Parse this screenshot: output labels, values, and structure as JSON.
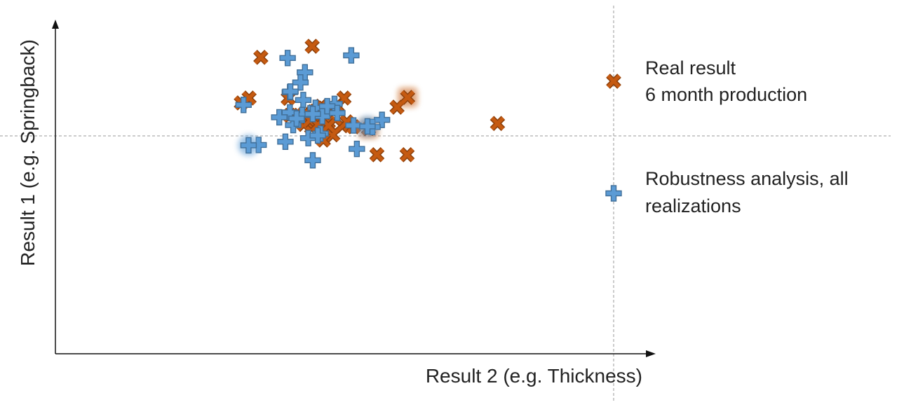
{
  "chart_data": {
    "type": "scatter",
    "xlabel": "Result 2 (e.g. Thickness)",
    "ylabel": "Result 1 (e.g. Springback)",
    "xlim": [
      0,
      1
    ],
    "ylim": [
      0,
      1
    ],
    "grid": false,
    "legend_position": "right",
    "reference_lines": {
      "horizontal_y": 0.72,
      "vertical_x": 1.0
    },
    "series": [
      {
        "name": "Real result\n6 month production",
        "legend_lines": [
          "Real result",
          "6 month production"
        ],
        "marker": "x",
        "color": "#C55A11",
        "points": [
          [
            0.46,
            0.944
          ],
          [
            0.368,
            0.91
          ],
          [
            0.517,
            0.785
          ],
          [
            0.612,
            0.757
          ],
          [
            0.446,
            0.737
          ],
          [
            0.333,
            0.77
          ],
          [
            0.514,
            0.7
          ],
          [
            0.476,
            0.76
          ],
          [
            0.475,
            0.714
          ],
          [
            0.489,
            0.71
          ],
          [
            0.458,
            0.731
          ],
          [
            0.459,
            0.694
          ],
          [
            0.497,
            0.672
          ],
          [
            0.48,
            0.656
          ],
          [
            0.42,
            0.732
          ],
          [
            0.534,
            0.697
          ],
          [
            0.63,
            0.611
          ],
          [
            0.505,
            0.76
          ],
          [
            0.792,
            0.707
          ],
          [
            0.445,
            0.704
          ],
          [
            0.347,
            0.785
          ],
          [
            0.576,
            0.611
          ],
          [
            0.417,
            0.784
          ],
          [
            0.437,
            0.732
          ],
          [
            0.462,
            0.743
          ],
          [
            0.475,
            0.744
          ],
          [
            0.456,
            0.717
          ],
          [
            0.47,
            0.703
          ],
          [
            0.466,
            0.745
          ],
          [
            0.481,
            0.754
          ],
          [
            0.522,
            0.712
          ],
          [
            0.489,
            0.7
          ]
        ],
        "highlighted": [
          [
            0.631,
            0.787
          ],
          [
            0.561,
            0.691
          ]
        ]
      },
      {
        "name": "Robustness analysis, all\nrealizations",
        "legend_lines": [
          "Robustness analysis, all",
          "realizations"
        ],
        "marker": "+",
        "color": "#5B9BD5",
        "points": [
          [
            0.416,
            0.908
          ],
          [
            0.447,
            0.864
          ],
          [
            0.53,
            0.916
          ],
          [
            0.337,
            0.764
          ],
          [
            0.439,
            0.833
          ],
          [
            0.42,
            0.803
          ],
          [
            0.444,
            0.779
          ],
          [
            0.421,
            0.805
          ],
          [
            0.466,
            0.755
          ],
          [
            0.5,
            0.767
          ],
          [
            0.442,
            0.733
          ],
          [
            0.42,
            0.741
          ],
          [
            0.426,
            0.702
          ],
          [
            0.475,
            0.676
          ],
          [
            0.478,
            0.729
          ],
          [
            0.487,
            0.76
          ],
          [
            0.534,
            0.701
          ],
          [
            0.461,
            0.736
          ],
          [
            0.505,
            0.739
          ],
          [
            0.412,
            0.651
          ],
          [
            0.453,
            0.662
          ],
          [
            0.54,
            0.629
          ],
          [
            0.461,
            0.594
          ],
          [
            0.364,
            0.641
          ],
          [
            0.585,
            0.718
          ],
          [
            0.568,
            0.696
          ],
          [
            0.47,
            0.67
          ],
          [
            0.432,
            0.722
          ],
          [
            0.401,
            0.726
          ]
        ],
        "highlighted": [
          [
            0.346,
            0.64
          ],
          [
            0.559,
            0.698
          ]
        ]
      }
    ]
  }
}
